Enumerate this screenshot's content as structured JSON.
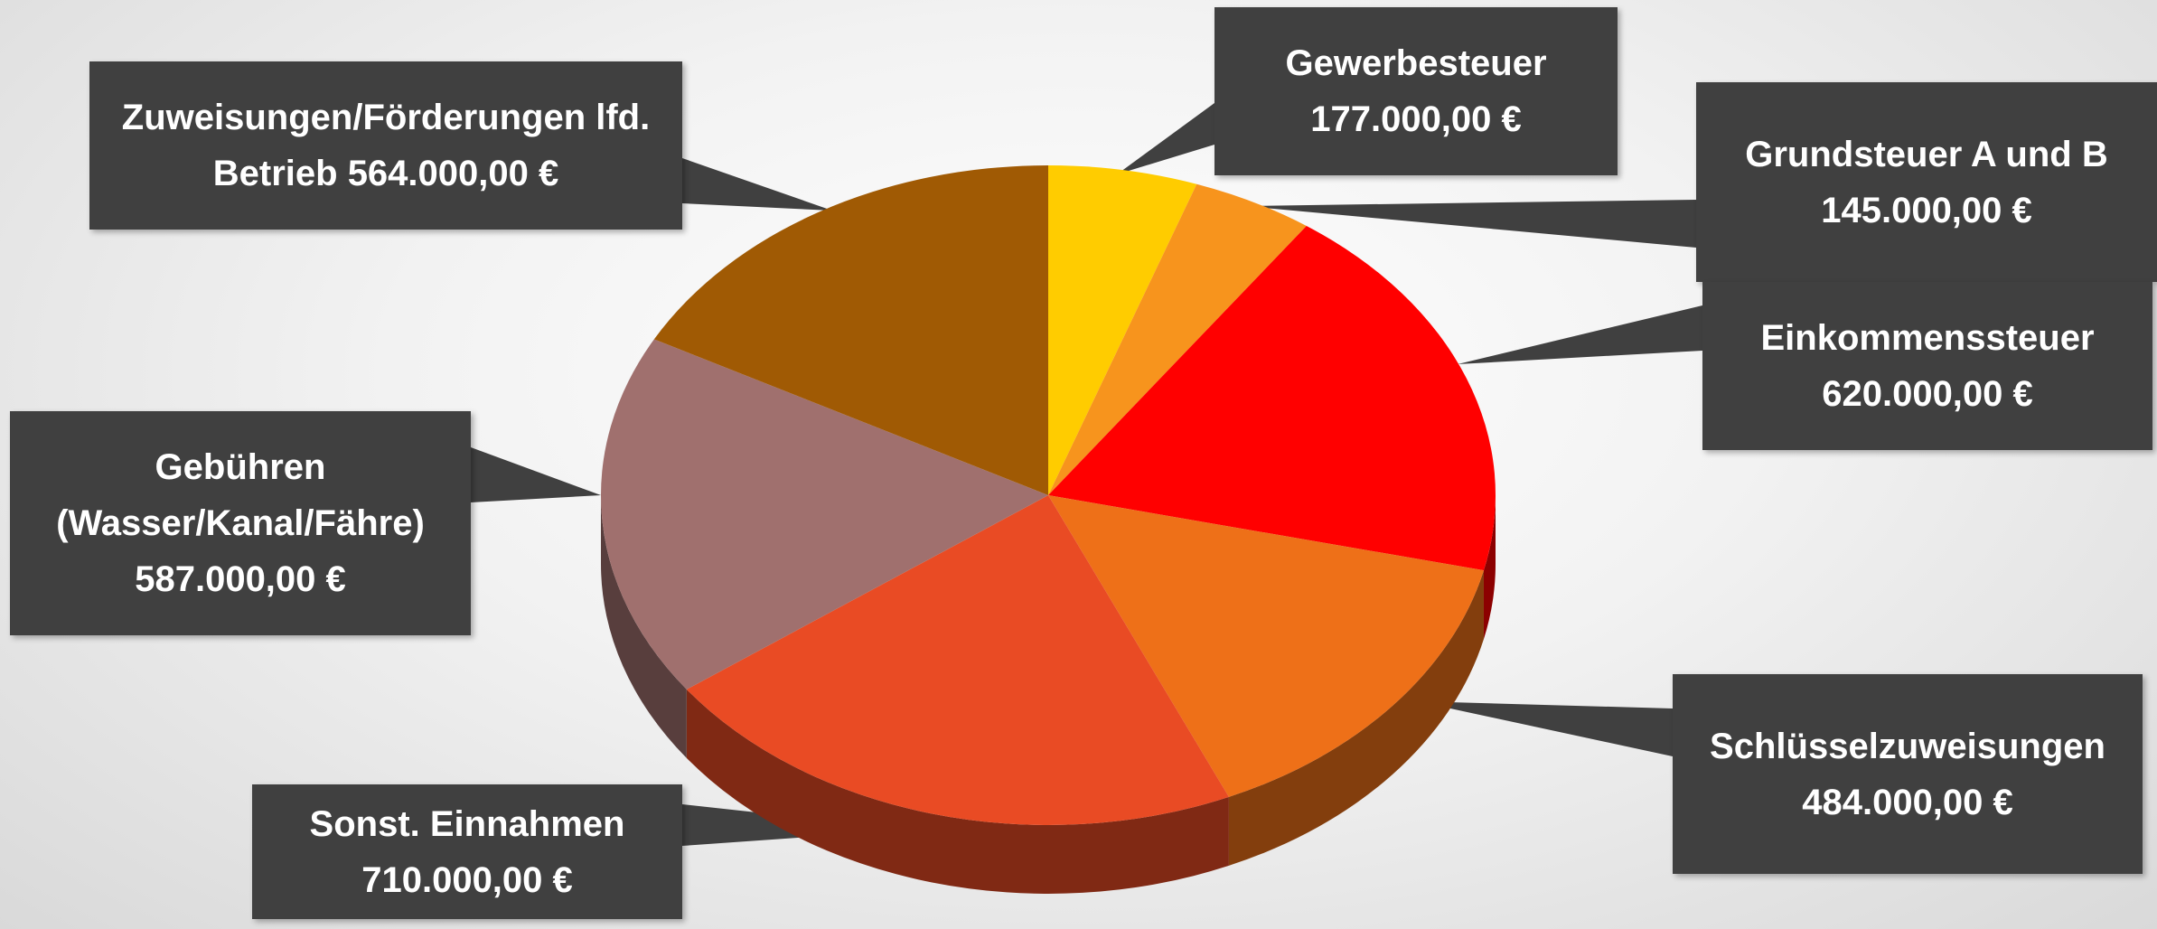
{
  "chart_data": {
    "type": "pie",
    "categories": [
      "Gewerbesteuer",
      "Grundsteuer A und B",
      "Einkommenssteuer",
      "Schlüsselzuweisungen",
      "Sonst. Einnahmen",
      "Gebühren (Wasser/Kanal/Fähre)",
      "Zuweisungen/Förderungen lfd. Betrieb"
    ],
    "values": [
      177000,
      145000,
      620000,
      484000,
      710000,
      587000,
      564000
    ],
    "value_labels": [
      "177.000,00 €",
      "145.000,00 €",
      "620.000,00 €",
      "484.000,00 €",
      "710.000,00 €",
      "587.000,00 €",
      "564.000,00 €"
    ],
    "colors": [
      "#FFCC00",
      "#F7941D",
      "#FF0000",
      "#EE7018",
      "#E94B24",
      "#A0706E",
      "#A05A04"
    ]
  }
}
